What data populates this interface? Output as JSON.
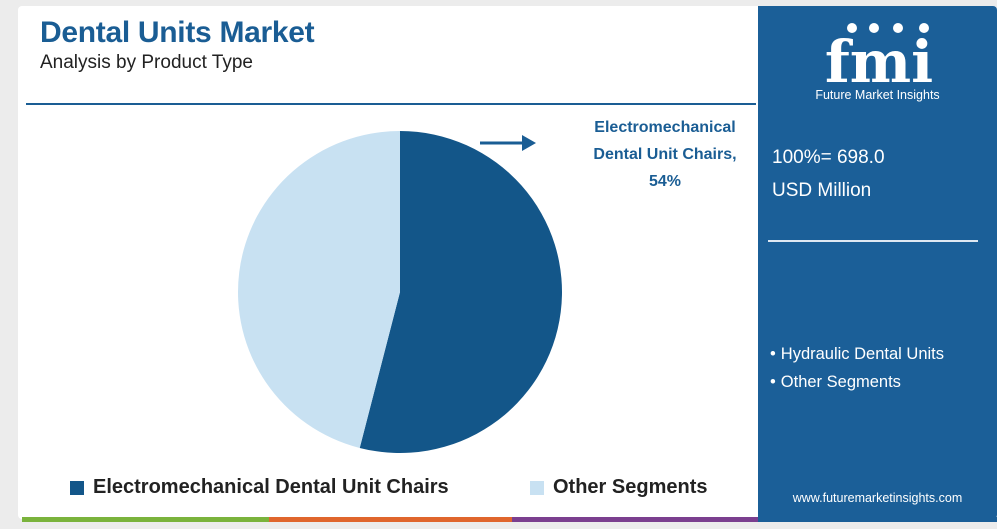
{
  "header": {
    "title": "Dental Units Market",
    "subtitle": "Analysis by Product Type"
  },
  "chart_data": {
    "type": "pie",
    "slices": [
      {
        "label": "Electromechanical Dental Unit Chairs",
        "value": 54,
        "color": "#135689"
      },
      {
        "label": "Other Segments",
        "value": 46,
        "color": "#c8e1f2"
      }
    ],
    "callout": {
      "line1": "Electromechanical",
      "line2": "Dental Unit Chairs,",
      "line3": "54%"
    },
    "legend_position": "bottom"
  },
  "legend": [
    {
      "label": "Electromechanical Dental Unit Chairs",
      "color": "#135689"
    },
    {
      "label": "Other Segments",
      "color": "#c8e1f2"
    }
  ],
  "sidebar": {
    "logo_text": "fmi",
    "logo_sub": "Future Market Insights",
    "total_line1": "100%= 698.0",
    "total_line2": "USD Million",
    "other_items": [
      "Hydraulic Dental Units",
      "Other Segments"
    ],
    "url": "www.futuremarketinsights.com"
  },
  "colors": {
    "brand": "#1b5f98",
    "accent_green": "#7ab33c",
    "accent_orange": "#e0662d",
    "accent_purple": "#7b3f8f"
  }
}
